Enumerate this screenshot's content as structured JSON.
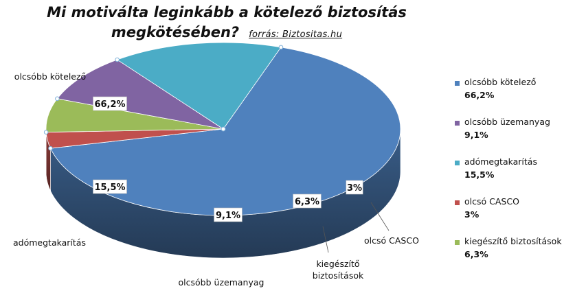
{
  "title_line1": "Mi motiválta leginkább a kötelező biztosítás",
  "title_line2": "megkötésében?",
  "source": "forrás: Biztositas.hu",
  "chart_data": {
    "type": "pie",
    "title": "Mi motiválta leginkább a kötelező biztosítás megkötésében?",
    "slices": [
      {
        "name": "olcsóbb kötelező",
        "value": 66.2,
        "label": "66,2%",
        "color": "#4f81bd"
      },
      {
        "name": "olcsó CASCO",
        "value": 3,
        "label": "3%",
        "color": "#c0504d"
      },
      {
        "name": "kiegészítő biztosítások",
        "value": 6.3,
        "label": "6,3%",
        "color": "#9bbb59"
      },
      {
        "name": "olcsóbb üzemanyag",
        "value": 9.1,
        "label": "9,1%",
        "color": "#8064a2"
      },
      {
        "name": "adómegtakarítás",
        "value": 15.5,
        "label": "15,5%",
        "color": "#4bacc6"
      }
    ],
    "legend": [
      {
        "name": "olcsóbb kötelező",
        "label": "66,2%",
        "color": "#4f81bd"
      },
      {
        "name": "olcsóbb üzemanyag",
        "label": "9,1%",
        "color": "#8064a2"
      },
      {
        "name": "adómegtakarítás",
        "label": "15,5%",
        "color": "#4bacc6"
      },
      {
        "name": "olcsó CASCO",
        "label": "3%",
        "color": "#c0504d"
      },
      {
        "name": "kiegészítő biztosítások",
        "label": "6,3%",
        "color": "#9bbb59"
      }
    ],
    "legend_position": "right",
    "style": "3d-pie"
  }
}
